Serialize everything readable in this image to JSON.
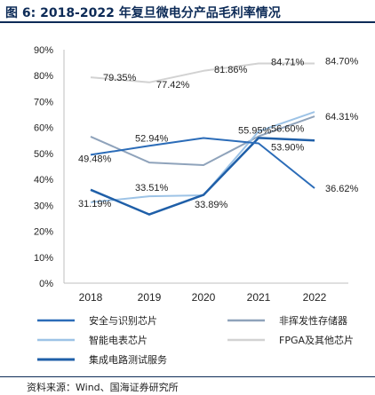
{
  "figure": {
    "label": "图 6:",
    "title": "2018-2022 年复旦微电分产品毛利率情况",
    "source": "资料来源：Wind、国海证券研究所"
  },
  "chart_data": {
    "type": "line",
    "x": [
      "2018",
      "2019",
      "2020",
      "2021",
      "2022"
    ],
    "ylim": [
      0,
      90
    ],
    "yticks": [
      0,
      10,
      20,
      30,
      40,
      50,
      60,
      70,
      80,
      90
    ],
    "ytick_labels": [
      "0%",
      "10%",
      "20%",
      "30%",
      "40%",
      "50%",
      "60%",
      "70%",
      "80%",
      "90%"
    ],
    "grid": false,
    "legend_position": "bottom",
    "series": [
      {
        "name": "安全与识别芯片",
        "color": "#2b6cb8",
        "width": 2,
        "values": [
          49.48,
          52.94,
          55.95,
          53.9,
          36.62
        ],
        "labels": [
          "49.48%",
          "52.94%",
          "55.95%",
          "53.90%",
          "36.62%"
        ]
      },
      {
        "name": "非挥发性存储器",
        "color": "#8fa3bb",
        "width": 2,
        "values": [
          56.5,
          46.5,
          45.5,
          56.6,
          64.31
        ],
        "labels": [
          null,
          null,
          null,
          "56.60%",
          "64.31%"
        ]
      },
      {
        "name": "智能电表芯片",
        "color": "#9dc3e6",
        "width": 2,
        "values": [
          31.19,
          33.51,
          33.89,
          58.5,
          66.0
        ],
        "labels": [
          "31.19%",
          "33.51%",
          "33.89%",
          null,
          null
        ]
      },
      {
        "name": "FPGA及其他芯片",
        "color": "#d2d2d2",
        "width": 2,
        "values": [
          79.35,
          77.42,
          81.86,
          84.71,
          84.7
        ],
        "labels": [
          "79.35%",
          "77.42%",
          "81.86%",
          "84.71%",
          "84.70%"
        ]
      },
      {
        "name": "集成电路测试服务",
        "color": "#1f5fa8",
        "width": 2.5,
        "values": [
          36.0,
          26.5,
          34.0,
          56.0,
          55.0
        ],
        "labels": [
          null,
          null,
          null,
          null,
          null
        ]
      }
    ]
  }
}
